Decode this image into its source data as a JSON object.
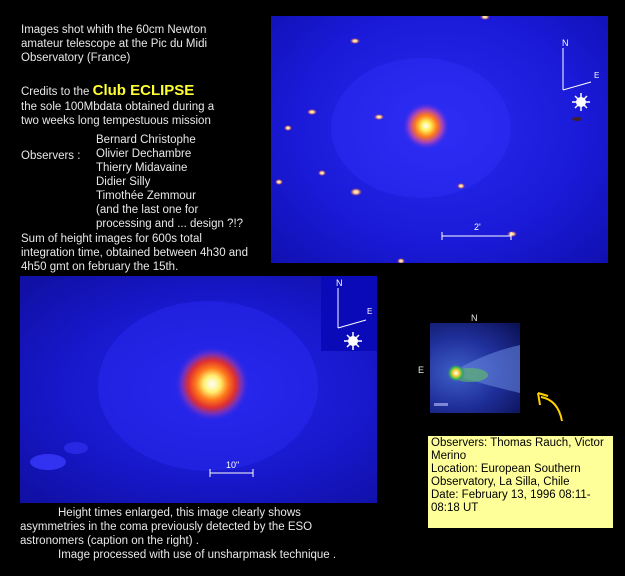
{
  "intro": {
    "line1": "Images shot whith the 60cm Newton",
    "line2": "amateur telescope at the Pic du Midi",
    "line3": "Observatory (France)"
  },
  "credits": {
    "prefix": "Credits to the",
    "club": "Club ECLIPSE",
    "line2": "the sole 100Mbdata obtained during a",
    "line3": "two weeks long tempestuous mission"
  },
  "observers": {
    "label": "Observers :",
    "names": [
      "Bernard Christophe",
      "Olivier Dechambre",
      "Thierry Midavaine",
      "Didier Silly",
      "Timothée Zemmour"
    ],
    "note1": "(and the last one for",
    "note2": "processing and ... design ?!?"
  },
  "sum": {
    "line1": "Sum of height images for 600s total",
    "line2": "integration time, obtained between 4h30 and",
    "line3": "4h50 gmt on february the 15th."
  },
  "top_image": {
    "scale_label": "2'",
    "north": "N",
    "east": "E"
  },
  "mid_image": {
    "scale_label": "10\"",
    "north": "N",
    "east": "E"
  },
  "eso_image": {
    "north": "N",
    "east": "E"
  },
  "bottom_caption": {
    "line1": "Height times enlarged, this image clearly shows",
    "line2": "asymmetries in the coma previously detected by the ESO",
    "line3": "astronomers (caption on the right) .",
    "line4": "Image processed with use of unsharpmask technique ."
  },
  "eso_caption": {
    "observers": "Observers: Thomas Rauch, Victor Merino",
    "location": "Location:  European Southern Observatory, La Silla, Chile",
    "date": "Date: February 13, 1996 08:11-08:18 UT"
  }
}
